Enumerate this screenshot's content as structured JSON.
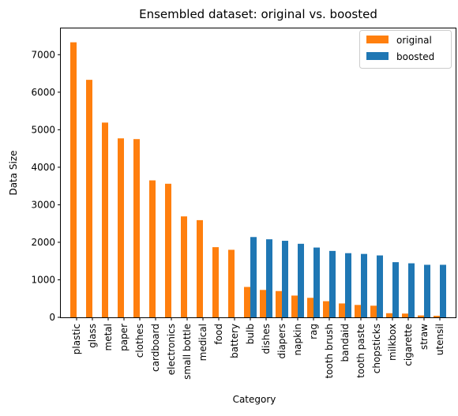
{
  "chart_data": {
    "type": "bar",
    "title": "Ensembled dataset: original vs. boosted",
    "xlabel": "Category",
    "ylabel": "Data Size",
    "ylim": [
      0,
      7700
    ],
    "yticks": [
      0,
      1000,
      2000,
      3000,
      4000,
      5000,
      6000,
      7000
    ],
    "grid": false,
    "legend_position": "top-right",
    "categories": [
      "plastic",
      "glass",
      "metal",
      "paper",
      "clothes",
      "cardboard",
      "electronics",
      "small bottle",
      "medical",
      "food",
      "battery",
      "bulb",
      "dishes",
      "diapers",
      "napkin",
      "rag",
      "tooth brush",
      "bandaid",
      "tooth paste",
      "chopsticks",
      "milkbox",
      "cigarette",
      "straw",
      "utensil"
    ],
    "series": [
      {
        "name": "original",
        "color": "#ff7f0e",
        "values": [
          7330,
          6330,
          5190,
          4770,
          4750,
          3650,
          3560,
          2690,
          2590,
          1870,
          1800,
          810,
          730,
          700,
          580,
          520,
          430,
          370,
          330,
          310,
          110,
          100,
          50,
          40
        ]
      },
      {
        "name": "boosted",
        "color": "#1f77b4",
        "values": [
          0,
          0,
          0,
          0,
          0,
          0,
          0,
          0,
          0,
          0,
          0,
          2140,
          2080,
          2040,
          1960,
          1860,
          1770,
          1710,
          1690,
          1650,
          1470,
          1440,
          1400,
          1400
        ]
      }
    ]
  }
}
